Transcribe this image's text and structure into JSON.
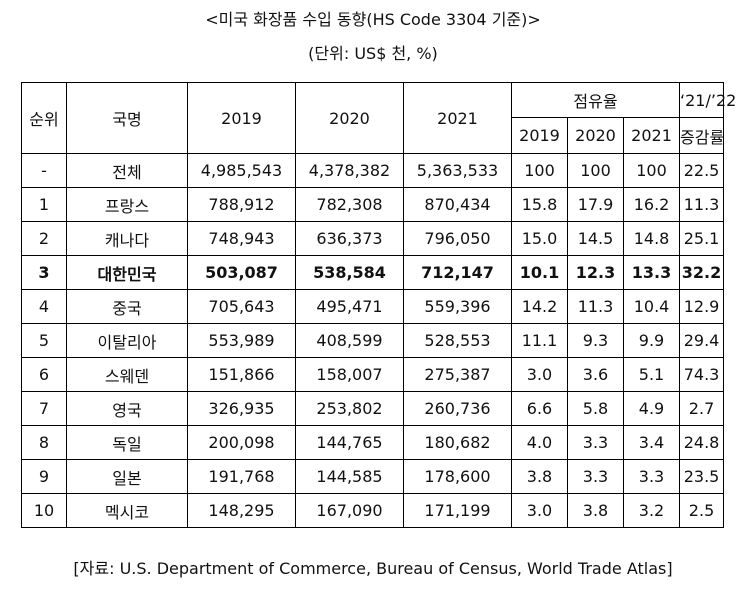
{
  "title": "<미국 화장품 수입 동향(HS Code 3304 기준)>",
  "unit": "(단위: US$ 천, %)",
  "table": {
    "headers": {
      "rank": "순위",
      "country": "국명",
      "y2019": "2019",
      "y2020": "2020",
      "y2021": "2021",
      "share": "점유율",
      "share_2019": "2019",
      "share_2020": "2020",
      "share_2021": "2021",
      "growth_top": "‘21/’22",
      "growth_bottom": "증감률"
    },
    "rows": [
      {
        "rank": "-",
        "country": "전체",
        "y2019": "4,985,543",
        "y2020": "4,378,382",
        "y2021": "5,363,533",
        "s2019": "100",
        "s2020": "100",
        "s2021": "100",
        "growth": "22.5"
      },
      {
        "rank": "1",
        "country": "프랑스",
        "y2019": "788,912",
        "y2020": "782,308",
        "y2021": "870,434",
        "s2019": "15.8",
        "s2020": "17.9",
        "s2021": "16.2",
        "growth": "11.3"
      },
      {
        "rank": "2",
        "country": "캐나다",
        "y2019": "748,943",
        "y2020": "636,373",
        "y2021": "796,050",
        "s2019": "15.0",
        "s2020": "14.5",
        "s2021": "14.8",
        "growth": "25.1"
      },
      {
        "rank": "3",
        "country": "대한민국",
        "y2019": "503,087",
        "y2020": "538,584",
        "y2021": "712,147",
        "s2019": "10.1",
        "s2020": "12.3",
        "s2021": "13.3",
        "growth": "32.2"
      },
      {
        "rank": "4",
        "country": "중국",
        "y2019": "705,643",
        "y2020": "495,471",
        "y2021": "559,396",
        "s2019": "14.2",
        "s2020": "11.3",
        "s2021": "10.4",
        "growth": "12.9"
      },
      {
        "rank": "5",
        "country": "이탈리아",
        "y2019": "553,989",
        "y2020": "408,599",
        "y2021": "528,553",
        "s2019": "11.1",
        "s2020": "9.3",
        "s2021": "9.9",
        "growth": "29.4"
      },
      {
        "rank": "6",
        "country": "스웨덴",
        "y2019": "151,866",
        "y2020": "158,007",
        "y2021": "275,387",
        "s2019": "3.0",
        "s2020": "3.6",
        "s2021": "5.1",
        "growth": "74.3"
      },
      {
        "rank": "7",
        "country": "영국",
        "y2019": "326,935",
        "y2020": "253,802",
        "y2021": "260,736",
        "s2019": "6.6",
        "s2020": "5.8",
        "s2021": "4.9",
        "growth": "2.7"
      },
      {
        "rank": "8",
        "country": "독일",
        "y2019": "200,098",
        "y2020": "144,765",
        "y2021": "180,682",
        "s2019": "4.0",
        "s2020": "3.3",
        "s2021": "3.4",
        "growth": "24.8"
      },
      {
        "rank": "9",
        "country": "일본",
        "y2019": "191,768",
        "y2020": "144,585",
        "y2021": "178,600",
        "s2019": "3.8",
        "s2020": "3.3",
        "s2021": "3.3",
        "growth": "23.5"
      },
      {
        "rank": "10",
        "country": "멕시코",
        "y2019": "148,295",
        "y2020": "167,090",
        "y2021": "171,199",
        "s2019": "3.0",
        "s2020": "3.8",
        "s2021": "3.2",
        "growth": "2.5"
      }
    ]
  },
  "source": "[자료: U.S. Department of Commerce, Bureau of Census, World Trade Atlas]"
}
